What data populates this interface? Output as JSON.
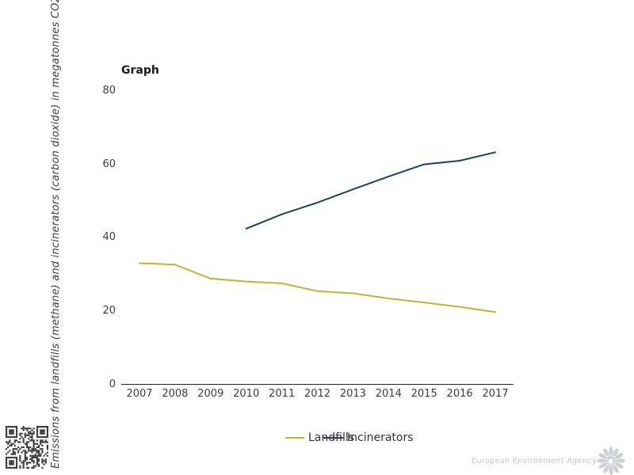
{
  "title": "Graph",
  "y_axis_label": "Emissions from landfills (methane) and incinerators (carbon dioxide) in megatonnes CO2e",
  "footer": {
    "agency_name": "European Environment Agency"
  },
  "icons": {
    "qr": "qr-code",
    "logo": "eea-sunburst-logo"
  },
  "legend": {
    "items": [
      {
        "label": "Landfills",
        "color": "#b2bd2d"
      },
      {
        "label": "Incinerators",
        "color": "#1b4265"
      }
    ]
  },
  "colors": {
    "landfills": "#b2bd2d",
    "incinerators": "#1b4265",
    "axis": "#262626",
    "tick_text": "#3d3d3d"
  },
  "chart_data": {
    "type": "line",
    "title": "Graph",
    "x": [
      2007,
      2008,
      2009,
      2010,
      2011,
      2012,
      2013,
      2014,
      2015,
      2016,
      2017
    ],
    "series": [
      {
        "name": "Landfills",
        "color": "#b2bd2d",
        "values": [
          33.1,
          32.7,
          28.9,
          28.1,
          27.6,
          25.5,
          24.9,
          23.5,
          22.4,
          21.2,
          19.8
        ]
      },
      {
        "name": "Incinerators",
        "color": "#1b4265",
        "values": [
          null,
          null,
          null,
          42.5,
          46.4,
          49.6,
          53.2,
          56.7,
          60.0,
          61.0,
          63.3
        ]
      }
    ],
    "ylabel": "Emissions from landfills (methane) and incinerators (carbon dioxide) in megatonnes CO2e",
    "xlabel": "",
    "yticks": [
      0,
      20,
      40,
      60,
      80
    ],
    "ylim": [
      0,
      80
    ],
    "grid": false,
    "legend_position": "bottom"
  }
}
